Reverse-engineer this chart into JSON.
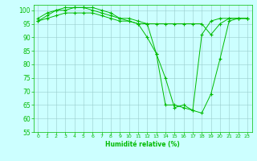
{
  "xlabel": "Humidité relative (%)",
  "x": [
    0,
    1,
    2,
    3,
    4,
    5,
    6,
    7,
    8,
    9,
    10,
    11,
    12,
    13,
    14,
    15,
    16,
    17,
    18,
    19,
    20,
    21,
    22,
    23
  ],
  "series": [
    [
      97,
      99,
      100,
      101,
      101,
      101,
      101,
      100,
      99,
      97,
      96,
      95,
      90,
      84,
      75,
      64,
      65,
      63,
      62,
      69,
      82,
      96,
      97,
      97
    ],
    [
      96,
      98,
      100,
      100,
      101,
      101,
      100,
      99,
      98,
      97,
      97,
      96,
      95,
      84,
      65,
      65,
      64,
      63,
      91,
      96,
      97,
      97,
      97,
      97
    ],
    [
      96,
      97,
      98,
      99,
      99,
      99,
      99,
      98,
      97,
      96,
      96,
      95,
      95,
      95,
      95,
      95,
      95,
      95,
      95,
      91,
      95,
      97,
      97,
      97
    ]
  ],
  "line_color": "#00bb00",
  "marker_color": "#00bb00",
  "bg_color": "#ccffff",
  "grid_color": "#99cccc",
  "ylim": [
    55,
    102
  ],
  "xlim": [
    -0.5,
    23.5
  ],
  "yticks": [
    55,
    60,
    65,
    70,
    75,
    80,
    85,
    90,
    95,
    100
  ],
  "xticks": [
    0,
    1,
    2,
    3,
    4,
    5,
    6,
    7,
    8,
    9,
    10,
    11,
    12,
    13,
    14,
    15,
    16,
    17,
    18,
    19,
    20,
    21,
    22,
    23
  ]
}
